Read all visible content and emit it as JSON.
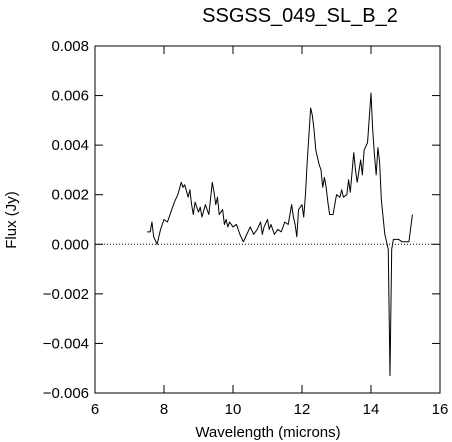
{
  "chart_data": {
    "type": "line",
    "title": "SSGSS_049_SL_B_2",
    "xlabel": "Wavelength (microns)",
    "ylabel": "Flux (Jy)",
    "xlim": [
      6,
      16
    ],
    "ylim": [
      -0.006,
      0.008
    ],
    "xticks": [
      6,
      8,
      10,
      12,
      14,
      16
    ],
    "yticks": [
      {
        "value": -0.006,
        "label": "−0.006"
      },
      {
        "value": -0.004,
        "label": "−0.004"
      },
      {
        "value": -0.002,
        "label": "−0.002"
      },
      {
        "value": 0,
        "label": "0.000"
      },
      {
        "value": 0.002,
        "label": "0.002"
      },
      {
        "value": 0.004,
        "label": "0.004"
      },
      {
        "value": 0.006,
        "label": "0.006"
      },
      {
        "value": 0.008,
        "label": "0.008"
      }
    ],
    "zero_line": true,
    "color": "#000000",
    "x": [
      7.51,
      7.6,
      7.65,
      7.7,
      7.8,
      7.9,
      8.0,
      8.1,
      8.2,
      8.3,
      8.4,
      8.5,
      8.55,
      8.6,
      8.7,
      8.75,
      8.8,
      8.85,
      8.9,
      9.0,
      9.05,
      9.1,
      9.2,
      9.3,
      9.4,
      9.45,
      9.5,
      9.55,
      9.6,
      9.7,
      9.75,
      9.8,
      9.85,
      9.9,
      10.0,
      10.1,
      10.2,
      10.3,
      10.4,
      10.5,
      10.6,
      10.7,
      10.8,
      10.85,
      10.9,
      11.0,
      11.05,
      11.1,
      11.2,
      11.3,
      11.4,
      11.5,
      11.6,
      11.7,
      11.75,
      11.8,
      11.85,
      11.9,
      12.0,
      12.05,
      12.1,
      12.15,
      12.2,
      12.25,
      12.3,
      12.35,
      12.4,
      12.5,
      12.55,
      12.6,
      12.65,
      12.7,
      12.75,
      12.8,
      12.9,
      13.0,
      13.1,
      13.15,
      13.2,
      13.3,
      13.35,
      13.4,
      13.5,
      13.55,
      13.6,
      13.7,
      13.75,
      13.8,
      13.9,
      14.0,
      14.05,
      14.1,
      14.15,
      14.2,
      14.25,
      14.3,
      14.35,
      14.4,
      14.45,
      14.5,
      14.55,
      14.6,
      14.65,
      14.8,
      14.9,
      15.0,
      15.1,
      15.2
    ],
    "values": [
      0.0005,
      0.0005,
      0.0009,
      0.0003,
      0.0,
      0.0006,
      0.001,
      0.0009,
      0.0013,
      0.0017,
      0.002,
      0.0025,
      0.0023,
      0.0024,
      0.0019,
      0.0022,
      0.0016,
      0.0012,
      0.0017,
      0.0013,
      0.0015,
      0.0011,
      0.0016,
      0.0012,
      0.0025,
      0.0021,
      0.0016,
      0.0019,
      0.0012,
      0.0014,
      0.0008,
      0.001,
      0.0007,
      0.0009,
      0.0007,
      0.0008,
      0.0004,
      0.0001,
      0.0004,
      0.0007,
      0.0004,
      0.0006,
      0.0009,
      0.0004,
      0.0007,
      0.001,
      0.0006,
      0.0008,
      0.0004,
      0.0006,
      0.0005,
      0.0009,
      0.0008,
      0.0016,
      0.0011,
      0.0008,
      0.0003,
      0.0014,
      0.0016,
      0.0011,
      0.002,
      0.0033,
      0.0044,
      0.0055,
      0.0052,
      0.0046,
      0.0038,
      0.0032,
      0.003,
      0.0023,
      0.0027,
      0.0023,
      0.0017,
      0.0012,
      0.0012,
      0.002,
      0.0019,
      0.0022,
      0.0019,
      0.002,
      0.0026,
      0.0021,
      0.0037,
      0.003,
      0.0025,
      0.0034,
      0.0028,
      0.0038,
      0.0041,
      0.0061,
      0.0046,
      0.0036,
      0.0028,
      0.0039,
      0.0033,
      0.0018,
      0.0011,
      0.0004,
      0.0001,
      -0.0002,
      -0.0053,
      -0.0002,
      0.0002,
      0.0002,
      0.0001,
      0.0001,
      0.0001,
      0.0012
    ]
  }
}
